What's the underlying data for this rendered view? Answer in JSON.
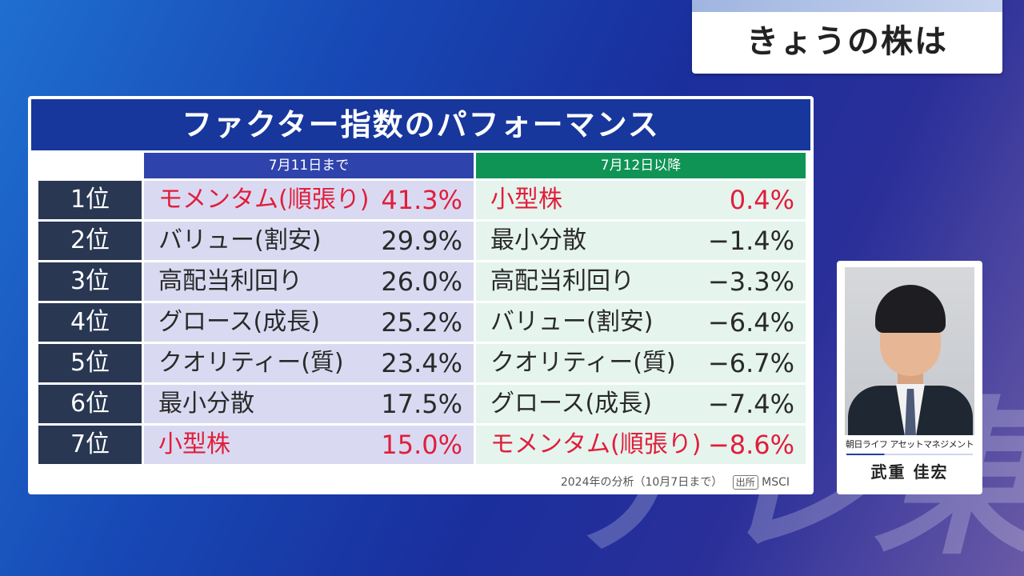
{
  "watermark": "テレ東",
  "topic_title": "きょうの株は",
  "panel_title": "ファクター指数のパフォーマンス",
  "column_left_header": "7月11日まで",
  "column_right_header": "7月12日以降",
  "rows": [
    {
      "rank": "1位",
      "left_name": "モメンタム(順張り)",
      "left_value": "41.3%",
      "right_name": "小型株",
      "right_value": "0.4%"
    },
    {
      "rank": "2位",
      "left_name": "バリュー(割安)",
      "left_value": "29.9%",
      "right_name": "最小分散",
      "right_value": "−1.4%"
    },
    {
      "rank": "3位",
      "left_name": "高配当利回り",
      "left_value": "26.0%",
      "right_name": "高配当利回り",
      "right_value": "−3.3%"
    },
    {
      "rank": "4位",
      "left_name": "グロース(成長)",
      "left_value": "25.2%",
      "right_name": "バリュー(割安)",
      "right_value": "−6.4%"
    },
    {
      "rank": "5位",
      "left_name": "クオリティー(質)",
      "left_value": "23.4%",
      "right_name": "クオリティー(質)",
      "right_value": "−6.7%"
    },
    {
      "rank": "6位",
      "left_name": "最小分散",
      "left_value": "17.5%",
      "right_name": "グロース(成長)",
      "right_value": "−7.4%"
    },
    {
      "rank": "7位",
      "left_name": "小型株",
      "left_value": "15.0%",
      "right_name": "モメンタム(順張り)",
      "right_value": "−8.6%"
    }
  ],
  "footer_note": "2024年の分析（10月7日まで）",
  "source_tag": "出所",
  "source_name": "MSCI",
  "profile": {
    "company": "朝日ライフ アセットマネジメント",
    "name": "武重 佳宏"
  },
  "colors": {
    "highlight": "#e01e3c",
    "header_blue": "#17379c",
    "header_green": "#0f9456",
    "rank_bg": "#293752"
  }
}
